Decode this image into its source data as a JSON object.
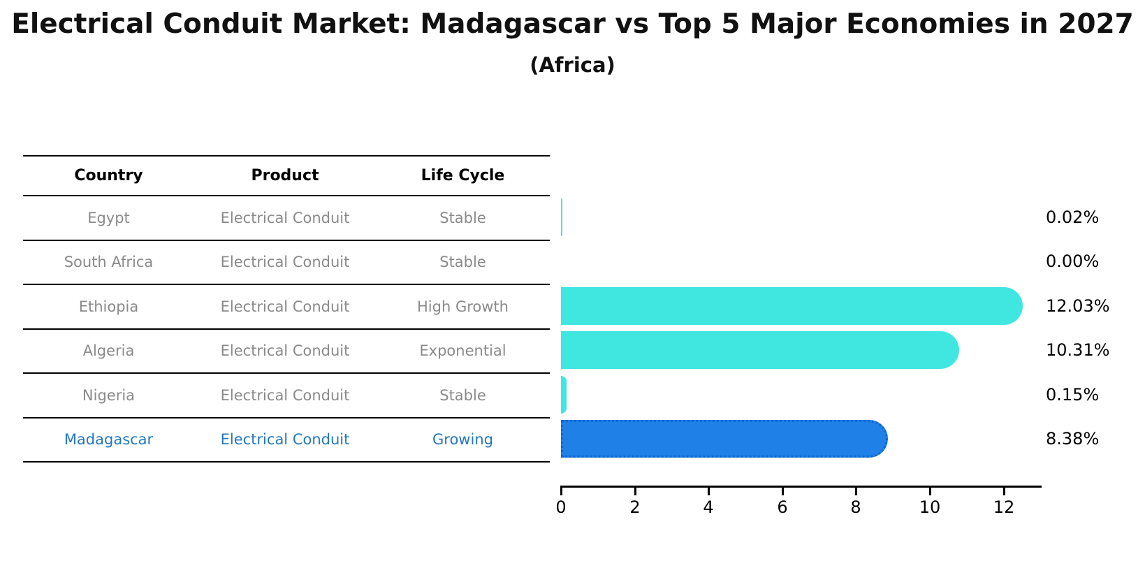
{
  "title": "Electrical Conduit Market: Madagascar vs Top 5 Major Economies in 2027",
  "subtitle": "(Africa)",
  "table": {
    "headers": {
      "country": "Country",
      "product": "Product",
      "life_cycle": "Life Cycle"
    },
    "rows": [
      {
        "country": "Egypt",
        "product": "Electrical Conduit",
        "life_cycle": "Stable"
      },
      {
        "country": "South Africa",
        "product": "Electrical Conduit",
        "life_cycle": "Stable"
      },
      {
        "country": "Ethiopia",
        "product": "Electrical Conduit",
        "life_cycle": "High Growth"
      },
      {
        "country": "Algeria",
        "product": "Electrical Conduit",
        "life_cycle": "Exponential"
      },
      {
        "country": "Nigeria",
        "product": "Electrical Conduit",
        "life_cycle": "Stable"
      },
      {
        "country": "Madagascar",
        "product": "Electrical Conduit",
        "life_cycle": "Growing"
      }
    ],
    "highlighted_row": "Madagascar"
  },
  "chart_data": {
    "type": "bar",
    "orientation": "horizontal",
    "categories": [
      "Egypt",
      "South Africa",
      "Ethiopia",
      "Algeria",
      "Nigeria",
      "Madagascar"
    ],
    "values": [
      0.02,
      0.0,
      12.03,
      10.31,
      0.15,
      8.38
    ],
    "value_labels": [
      "0.02%",
      "0.00%",
      "12.03%",
      "10.31%",
      "0.15%",
      "8.38%"
    ],
    "x_ticks": [
      0,
      2,
      4,
      6,
      8,
      10,
      12
    ],
    "xlim": [
      0,
      13
    ],
    "grid": false,
    "legend": "none",
    "bar_color": "#40E7E1",
    "highlight_bar_color": "#1F80E8",
    "highlight_bar_border": "#0F66CF",
    "highlight_index": 5,
    "axis_color": "#000000"
  },
  "colors": {
    "background": "#FFFFFF",
    "table_row_text": "#8A8A8A",
    "table_header_text": "#000000",
    "highlight_text": "#2478BE",
    "value_label_text": "#000000"
  }
}
